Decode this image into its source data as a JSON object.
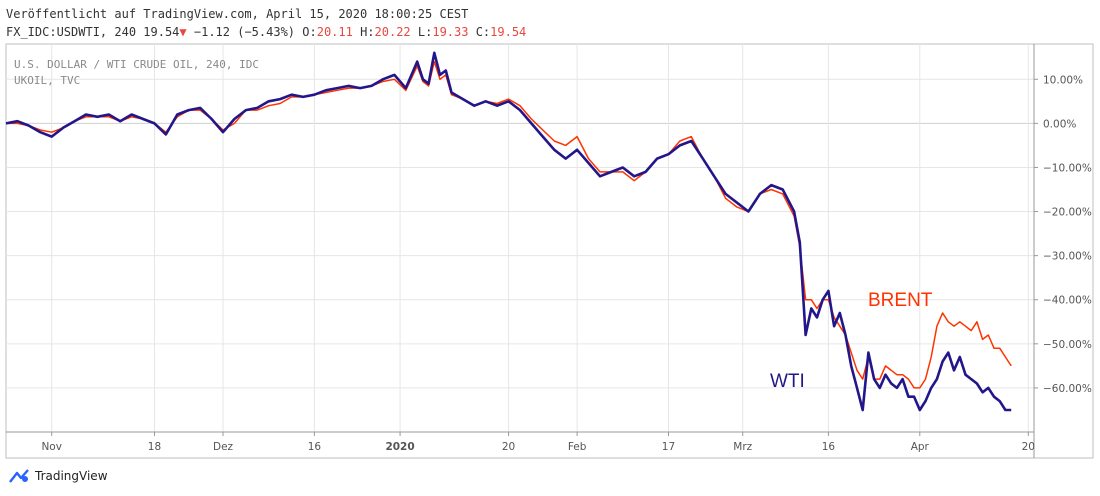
{
  "header": {
    "published": "Veröffentlicht auf TradingView.com, April 15, 2020 18:00:25 CEST",
    "symbol": "FX_IDC:USDWTI, 240",
    "last": "19.54",
    "change": "−1.12 (−5.43%)",
    "o_label": "O:",
    "o_value": "20.11",
    "h_label": "H:",
    "h_value": "20.22",
    "l_label": "L:",
    "l_value": "19.33",
    "c_label": "C:",
    "c_value": "19.54"
  },
  "footer": {
    "brand": "TradingView"
  },
  "colors": {
    "wti": "#23168a",
    "brent": "#ff3300",
    "grid": "#e6e6e6",
    "axis": "#555555",
    "label_red": "#e8473f"
  },
  "chart_data": {
    "type": "line",
    "legend_lines": [
      "U.S. DOLLAR / WTI CRUDE OIL, 240, IDC",
      "UKOIL, TVC"
    ],
    "annotations": [
      {
        "text": "BRENT",
        "color": "#ff3300"
      },
      {
        "text": "WTI",
        "color": "#23168a"
      }
    ],
    "ylim": [
      -70,
      18
    ],
    "y_ticks": [
      "10.00%",
      "0.00%",
      "−10.00%",
      "−20.00%",
      "−30.00%",
      "−40.00%",
      "−50.00%",
      "−60.00%"
    ],
    "y_tick_values": [
      10,
      0,
      -10,
      -20,
      -30,
      -40,
      -50,
      -60
    ],
    "x_ticks": [
      "Nov",
      "18",
      "Dez",
      "16",
      "2020",
      "20",
      "Feb",
      "17",
      "Mrz",
      "16",
      "Apr",
      "20"
    ],
    "x_tick_days": [
      0,
      18,
      30,
      46,
      61,
      80,
      92,
      108,
      121,
      136,
      152,
      171
    ],
    "xlim_days": [
      -8,
      172
    ],
    "x_unit": "days from Nov 1 2019",
    "series": [
      {
        "name": "WTI",
        "color": "#23168a",
        "points": [
          [
            -8,
            0
          ],
          [
            -6,
            0.5
          ],
          [
            -4,
            -0.5
          ],
          [
            -2,
            -2
          ],
          [
            0,
            -3
          ],
          [
            2,
            -1
          ],
          [
            4,
            0.5
          ],
          [
            6,
            2
          ],
          [
            8,
            1.5
          ],
          [
            10,
            2
          ],
          [
            12,
            0.5
          ],
          [
            14,
            2
          ],
          [
            16,
            1
          ],
          [
            18,
            0
          ],
          [
            20,
            -2.5
          ],
          [
            22,
            2
          ],
          [
            24,
            3
          ],
          [
            26,
            3.5
          ],
          [
            28,
            1
          ],
          [
            30,
            -2
          ],
          [
            32,
            1
          ],
          [
            34,
            3
          ],
          [
            36,
            3.5
          ],
          [
            38,
            5
          ],
          [
            40,
            5.5
          ],
          [
            42,
            6.5
          ],
          [
            44,
            6
          ],
          [
            46,
            6.5
          ],
          [
            48,
            7.5
          ],
          [
            50,
            8
          ],
          [
            52,
            8.5
          ],
          [
            54,
            8
          ],
          [
            56,
            8.5
          ],
          [
            58,
            10
          ],
          [
            60,
            11
          ],
          [
            62,
            8
          ],
          [
            64,
            14
          ],
          [
            65,
            10
          ],
          [
            66,
            9
          ],
          [
            67,
            16
          ],
          [
            68,
            11
          ],
          [
            69,
            12
          ],
          [
            70,
            7
          ],
          [
            72,
            5.5
          ],
          [
            74,
            4
          ],
          [
            76,
            5
          ],
          [
            78,
            4
          ],
          [
            80,
            5
          ],
          [
            82,
            3
          ],
          [
            84,
            0
          ],
          [
            86,
            -3
          ],
          [
            88,
            -6
          ],
          [
            90,
            -8
          ],
          [
            92,
            -6
          ],
          [
            94,
            -9
          ],
          [
            96,
            -12
          ],
          [
            98,
            -11
          ],
          [
            100,
            -10
          ],
          [
            102,
            -12
          ],
          [
            104,
            -11
          ],
          [
            106,
            -8
          ],
          [
            108,
            -7
          ],
          [
            110,
            -5
          ],
          [
            112,
            -4
          ],
          [
            114,
            -8
          ],
          [
            116,
            -12
          ],
          [
            118,
            -16
          ],
          [
            120,
            -18
          ],
          [
            122,
            -20
          ],
          [
            124,
            -16
          ],
          [
            126,
            -14
          ],
          [
            128,
            -15
          ],
          [
            130,
            -20
          ],
          [
            131,
            -27
          ],
          [
            132,
            -48
          ],
          [
            133,
            -42
          ],
          [
            134,
            -44
          ],
          [
            135,
            -40
          ],
          [
            136,
            -38
          ],
          [
            137,
            -46
          ],
          [
            138,
            -43
          ],
          [
            139,
            -48
          ],
          [
            140,
            -55
          ],
          [
            141,
            -60
          ],
          [
            142,
            -65
          ],
          [
            143,
            -52
          ],
          [
            144,
            -58
          ],
          [
            145,
            -60
          ],
          [
            146,
            -57
          ],
          [
            147,
            -59
          ],
          [
            148,
            -60
          ],
          [
            149,
            -58
          ],
          [
            150,
            -62
          ],
          [
            151,
            -62
          ],
          [
            152,
            -65
          ],
          [
            153,
            -63
          ],
          [
            154,
            -60
          ],
          [
            155,
            -58
          ],
          [
            156,
            -54
          ],
          [
            157,
            -52
          ],
          [
            158,
            -56
          ],
          [
            159,
            -53
          ],
          [
            160,
            -57
          ],
          [
            161,
            -58
          ],
          [
            162,
            -59
          ],
          [
            163,
            -61
          ],
          [
            164,
            -60
          ],
          [
            165,
            -62
          ],
          [
            166,
            -63
          ],
          [
            167,
            -65
          ],
          [
            168,
            -65
          ]
        ]
      },
      {
        "name": "BRENT",
        "color": "#ff3300",
        "points": [
          [
            -8,
            0
          ],
          [
            -6,
            0
          ],
          [
            -4,
            -0.5
          ],
          [
            -2,
            -1.5
          ],
          [
            0,
            -2
          ],
          [
            2,
            -1
          ],
          [
            4,
            0.5
          ],
          [
            6,
            1.5
          ],
          [
            8,
            1.5
          ],
          [
            10,
            1.5
          ],
          [
            12,
            0.5
          ],
          [
            14,
            1.5
          ],
          [
            16,
            1
          ],
          [
            18,
            0
          ],
          [
            20,
            -2
          ],
          [
            22,
            1.5
          ],
          [
            24,
            3
          ],
          [
            26,
            3
          ],
          [
            28,
            1
          ],
          [
            30,
            -1.5
          ],
          [
            32,
            0
          ],
          [
            34,
            3
          ],
          [
            36,
            3
          ],
          [
            38,
            4
          ],
          [
            40,
            4.5
          ],
          [
            42,
            6
          ],
          [
            44,
            6
          ],
          [
            46,
            6.5
          ],
          [
            48,
            7
          ],
          [
            50,
            7.5
          ],
          [
            52,
            8
          ],
          [
            54,
            8
          ],
          [
            56,
            8.5
          ],
          [
            58,
            9.5
          ],
          [
            60,
            10
          ],
          [
            62,
            7.5
          ],
          [
            64,
            13
          ],
          [
            65,
            9.5
          ],
          [
            66,
            8.5
          ],
          [
            67,
            14
          ],
          [
            68,
            10
          ],
          [
            69,
            11
          ],
          [
            70,
            6.5
          ],
          [
            72,
            5.5
          ],
          [
            74,
            4
          ],
          [
            76,
            5
          ],
          [
            78,
            4.5
          ],
          [
            80,
            5.5
          ],
          [
            82,
            4
          ],
          [
            84,
            1
          ],
          [
            86,
            -1.5
          ],
          [
            88,
            -4
          ],
          [
            90,
            -5
          ],
          [
            92,
            -3
          ],
          [
            94,
            -8
          ],
          [
            96,
            -11
          ],
          [
            98,
            -11
          ],
          [
            100,
            -11
          ],
          [
            102,
            -13
          ],
          [
            104,
            -11
          ],
          [
            106,
            -8
          ],
          [
            108,
            -7
          ],
          [
            110,
            -4
          ],
          [
            112,
            -3
          ],
          [
            114,
            -8
          ],
          [
            116,
            -12
          ],
          [
            118,
            -17
          ],
          [
            120,
            -19
          ],
          [
            122,
            -20
          ],
          [
            124,
            -16
          ],
          [
            126,
            -15
          ],
          [
            128,
            -16
          ],
          [
            130,
            -21
          ],
          [
            131,
            -28
          ],
          [
            132,
            -40
          ],
          [
            133,
            -40
          ],
          [
            134,
            -42
          ],
          [
            135,
            -40
          ],
          [
            136,
            -40
          ],
          [
            137,
            -44
          ],
          [
            138,
            -46
          ],
          [
            139,
            -48
          ],
          [
            140,
            -52
          ],
          [
            141,
            -56
          ],
          [
            142,
            -58
          ],
          [
            143,
            -53
          ],
          [
            144,
            -58
          ],
          [
            145,
            -58
          ],
          [
            146,
            -55
          ],
          [
            147,
            -56
          ],
          [
            148,
            -57
          ],
          [
            149,
            -57
          ],
          [
            150,
            -58
          ],
          [
            151,
            -60
          ],
          [
            152,
            -60
          ],
          [
            153,
            -58
          ],
          [
            154,
            -53
          ],
          [
            155,
            -46
          ],
          [
            156,
            -43
          ],
          [
            157,
            -45
          ],
          [
            158,
            -46
          ],
          [
            159,
            -45
          ],
          [
            160,
            -46
          ],
          [
            161,
            -47
          ],
          [
            162,
            -45
          ],
          [
            163,
            -49
          ],
          [
            164,
            -48
          ],
          [
            165,
            -51
          ],
          [
            166,
            -51
          ],
          [
            167,
            -53
          ],
          [
            168,
            -55
          ]
        ]
      }
    ]
  }
}
